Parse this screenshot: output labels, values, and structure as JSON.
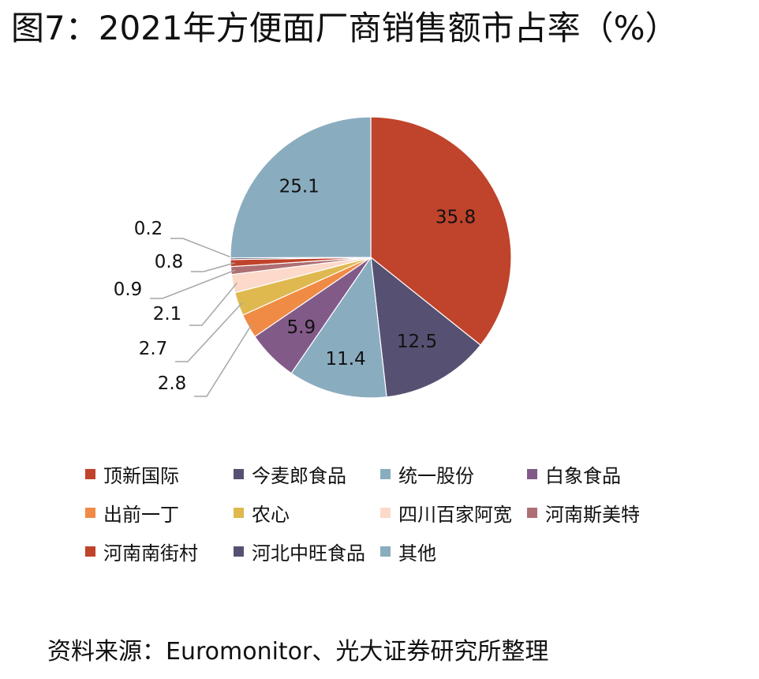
{
  "title": "图7：2021年方便面厂商销售额市占率（%）",
  "source": "资料来源：Euromonitor、光大证券研究所整理",
  "chart_data": {
    "type": "pie",
    "title": "图7：2021年方便面厂商销售额市占率（%）",
    "legend_position": "bottom",
    "slices": [
      {
        "name": "顶新国际",
        "value": 35.8,
        "label": "35.8",
        "color": "#c0432b"
      },
      {
        "name": "今麦郎食品",
        "value": 12.5,
        "label": "12.5",
        "color": "#565172"
      },
      {
        "name": "统一股份",
        "value": 11.4,
        "label": "11.4",
        "color": "#8aacbf"
      },
      {
        "name": "白象食品",
        "value": 5.9,
        "label": "5.9",
        "color": "#825a88"
      },
      {
        "name": "出前一丁",
        "value": 2.8,
        "label": "2.8",
        "color": "#f08b45"
      },
      {
        "name": "农心",
        "value": 2.7,
        "label": "2.7",
        "color": "#dfb94f"
      },
      {
        "name": "四川百家阿宽",
        "value": 2.1,
        "label": "2.1",
        "color": "#fcd9c9"
      },
      {
        "name": "河南斯美特",
        "value": 0.9,
        "label": "0.9",
        "color": "#ad6f73"
      },
      {
        "name": "河南南街村",
        "value": 0.8,
        "label": "0.8",
        "color": "#c0432b"
      },
      {
        "name": "河北中旺食品",
        "value": 0.2,
        "label": "0.2",
        "color": "#565172"
      },
      {
        "name": "其他",
        "value": 25.1,
        "label": "25.1",
        "color": "#8aacbf"
      }
    ]
  }
}
